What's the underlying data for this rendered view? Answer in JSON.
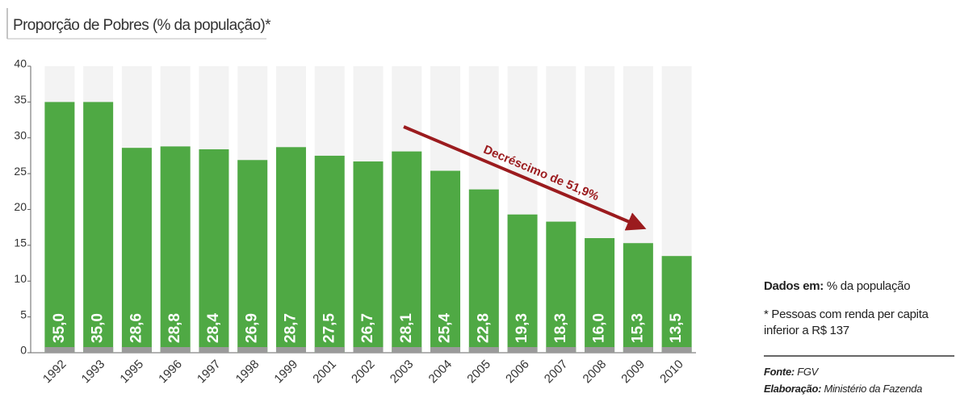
{
  "chart_data": {
    "type": "bar",
    "title": "Proporção de Pobres (% da população)*",
    "categories": [
      "1992",
      "1993",
      "1995",
      "1996",
      "1997",
      "1998",
      "1999",
      "2001",
      "2002",
      "2003",
      "2004",
      "2005",
      "2006",
      "2007",
      "2008",
      "2009",
      "2010"
    ],
    "values": [
      35.0,
      35.0,
      28.6,
      28.8,
      28.4,
      26.9,
      28.7,
      27.5,
      26.7,
      28.1,
      25.4,
      22.8,
      19.3,
      18.3,
      16.0,
      15.3,
      13.5
    ],
    "value_labels": [
      "35,0",
      "35,0",
      "28,6",
      "28,8",
      "28,4",
      "26,9",
      "28,7",
      "27,5",
      "26,7",
      "28,1",
      "25,4",
      "22,8",
      "19,3",
      "18,3",
      "16,0",
      "15,3",
      "13,5"
    ],
    "color": "#4fa944",
    "ylim": [
      0,
      40
    ],
    "yticks": [
      0,
      5,
      10,
      15,
      20,
      25,
      30,
      35,
      40
    ],
    "annotation": "Decréscimo de 51,9%",
    "annotation_color": "#9b1b1e",
    "notes": {
      "units_label": "Dados em:",
      "units": "% da população",
      "footnote": "* Pessoas com renda per capita inferior a R$ 137",
      "source_label": "Fonte:",
      "source": "FGV",
      "elaboration_label": "Elaboração:",
      "elaboration": "Ministério da Fazenda"
    }
  }
}
